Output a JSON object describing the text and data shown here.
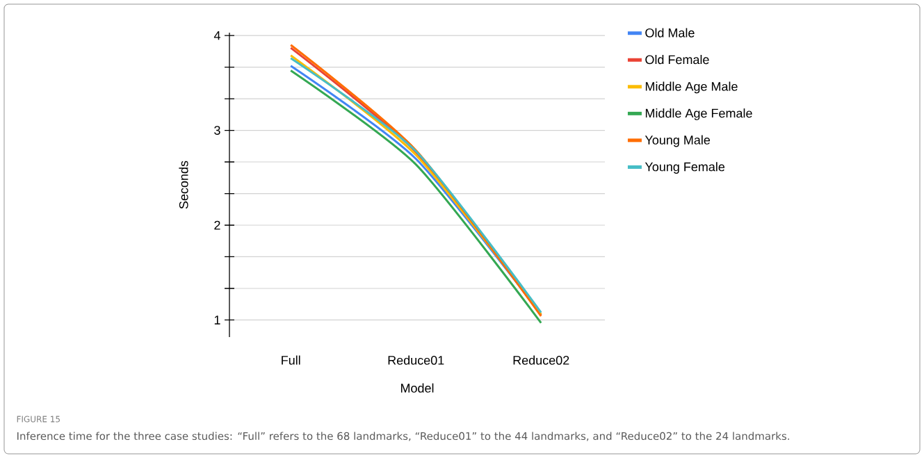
{
  "chart_data": {
    "type": "line",
    "xlabel": "Model",
    "ylabel": "Seconds",
    "categories": [
      "Full",
      "Reduce01",
      "Reduce02"
    ],
    "series": [
      {
        "name": "Old Male",
        "color": "#4285f4",
        "values": [
          3.68,
          2.7,
          1.06
        ]
      },
      {
        "name": "Old Female",
        "color": "#ea4335",
        "values": [
          3.87,
          2.77,
          1.05
        ]
      },
      {
        "name": "Middle Age Male",
        "color": "#fbbc04",
        "values": [
          3.79,
          2.74,
          1.06
        ]
      },
      {
        "name": "Middle Age Female",
        "color": "#34a853",
        "values": [
          3.63,
          2.64,
          0.97
        ]
      },
      {
        "name": "Young Male",
        "color": "#ff6d01",
        "values": [
          3.9,
          2.79,
          1.04
        ]
      },
      {
        "name": "Young Female",
        "color": "#46bdc6",
        "values": [
          3.76,
          2.78,
          1.08
        ]
      }
    ],
    "ylim": [
      0.82,
      4.03
    ],
    "yticks": [
      1,
      {
        "value": 1.333,
        "label": null
      },
      {
        "value": 1.667,
        "label": null
      },
      2,
      {
        "value": 2.333,
        "label": null
      },
      {
        "value": 2.667,
        "label": null
      },
      3,
      {
        "value": 3.333,
        "label": null
      },
      {
        "value": 3.667,
        "label": null
      },
      4
    ],
    "grid": "y",
    "legend": "top right",
    "marker": "none",
    "line_style": "solid",
    "annotations": [
      "FIGURE 15",
      "Inference time for the three case studies: “Full” refers to the 68 landmarks, “Reduce01” to the 44 landmarks, and “Reduce02” to the 24 landmarks."
    ]
  }
}
